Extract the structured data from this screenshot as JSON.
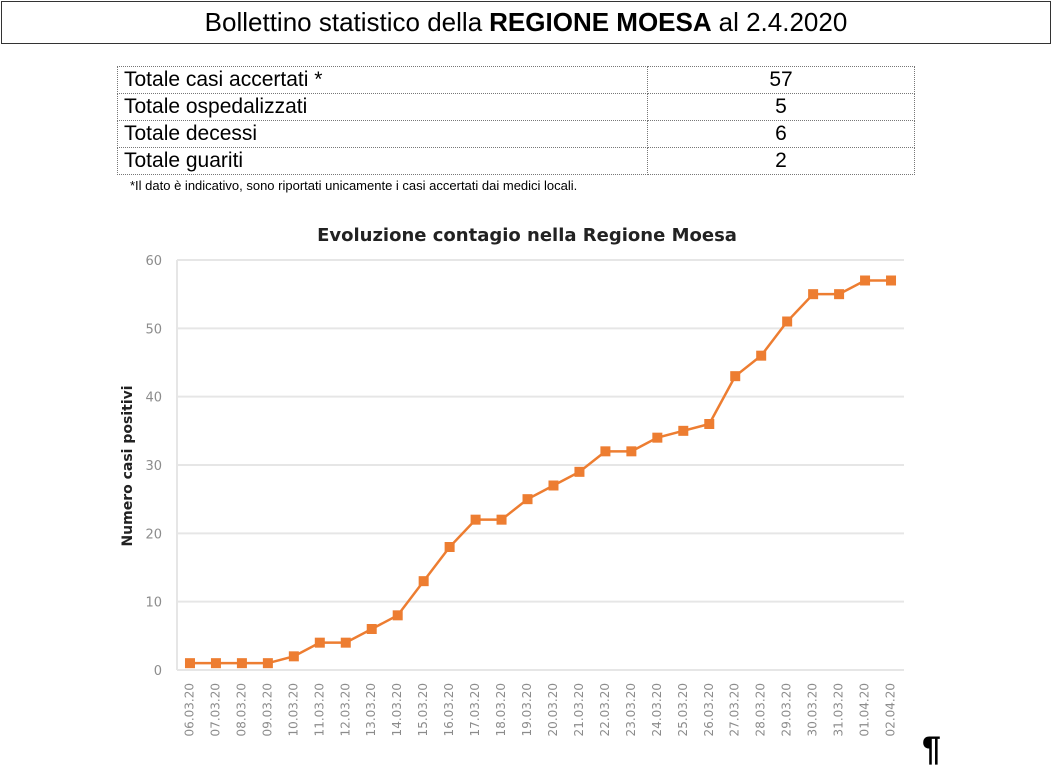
{
  "header": {
    "prefix": "Bollettino statistico della",
    "region": "REGIONE MOESA",
    "suffix": "al 2.4.2020"
  },
  "stats_table": {
    "rows": [
      {
        "label": "Totale casi accertati  *",
        "value": "57"
      },
      {
        "label": "Totale ospedalizzati",
        "value": "5"
      },
      {
        "label": "Totale decessi",
        "value": "6"
      },
      {
        "label": "Totale guariti",
        "value": "2"
      }
    ],
    "footnote": "*Il dato è indicativo, sono riportati unicamente i casi accertati dai medici locali."
  },
  "end_mark": "¶",
  "colors": {
    "line": "#ED7D31",
    "grid": "#E6E6E6",
    "tick_text": "#8C8C8C"
  },
  "chart_data": {
    "type": "line",
    "title": "Evoluzione contagio nella Regione Moesa",
    "xlabel": "",
    "ylabel": "Numero casi positivi",
    "ylim": [
      0,
      60
    ],
    "yticks": [
      0,
      10,
      20,
      30,
      40,
      50,
      60
    ],
    "grid": true,
    "legend": "none",
    "marker": "square",
    "categories": [
      "06.03.20",
      "07.03.20",
      "08.03.20",
      "09.03.20",
      "10.03.20",
      "11.03.20",
      "12.03.20",
      "13.03.20",
      "14.03.20",
      "15.03.20",
      "16.03.20",
      "17.03.20",
      "18.03.20",
      "19.03.20",
      "20.03.20",
      "21.03.20",
      "22.03.20",
      "23.03.20",
      "24.03.20",
      "25.03.20",
      "26.03.20",
      "27.03.20",
      "28.03.20",
      "29.03.20",
      "30.03.20",
      "31.03.20",
      "01.04.20",
      "02.04.20"
    ],
    "values": [
      1,
      1,
      1,
      1,
      2,
      4,
      4,
      6,
      8,
      13,
      18,
      22,
      22,
      25,
      27,
      29,
      32,
      32,
      34,
      35,
      36,
      43,
      46,
      51,
      55,
      55,
      57,
      57
    ]
  }
}
